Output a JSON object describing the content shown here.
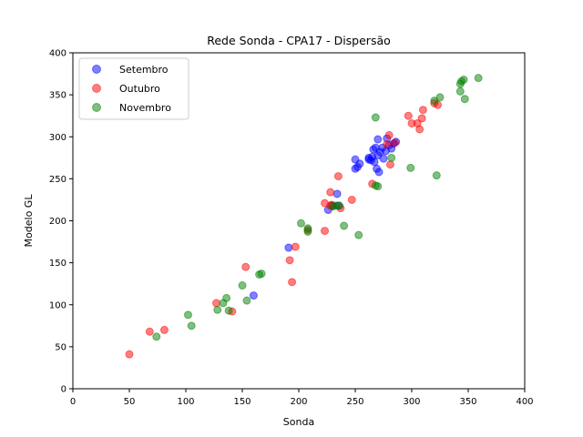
{
  "chart_data": {
    "type": "scatter",
    "title": "Rede Sonda - CPA17 - Dispersão",
    "xlabel": "Sonda",
    "ylabel": "Modelo GL",
    "xlim": [
      0,
      400
    ],
    "ylim": [
      0,
      400
    ],
    "xticks": [
      "0",
      "50",
      "100",
      "150",
      "200",
      "250",
      "300",
      "350",
      "400"
    ],
    "yticks": [
      "0",
      "50",
      "100",
      "150",
      "200",
      "250",
      "300",
      "350",
      "400"
    ],
    "grid": false,
    "legend": "top-left",
    "series": [
      {
        "name": "Setembro",
        "color": "#0000ff",
        "points": [
          [
            160,
            111
          ],
          [
            191,
            168
          ],
          [
            226,
            213
          ],
          [
            234,
            232
          ],
          [
            230,
            218
          ],
          [
            235,
            218
          ],
          [
            250,
            262
          ],
          [
            250,
            273
          ],
          [
            252,
            264
          ],
          [
            254,
            268
          ],
          [
            262,
            273
          ],
          [
            265,
            276
          ],
          [
            266,
            285
          ],
          [
            267,
            270
          ],
          [
            268,
            287
          ],
          [
            269,
            262
          ],
          [
            270,
            297
          ],
          [
            270,
            278
          ],
          [
            271,
            258
          ],
          [
            272,
            282
          ],
          [
            274,
            287
          ],
          [
            275,
            274
          ],
          [
            277,
            283
          ],
          [
            278,
            298
          ],
          [
            280,
            290
          ],
          [
            282,
            286
          ],
          [
            284,
            292
          ],
          [
            286,
            294
          ],
          [
            264,
            272
          ],
          [
            262,
            275
          ]
        ]
      },
      {
        "name": "Outubro",
        "color": "#ff0000",
        "points": [
          [
            50,
            41
          ],
          [
            68,
            68
          ],
          [
            81,
            70
          ],
          [
            127,
            102
          ],
          [
            141,
            92
          ],
          [
            153,
            145
          ],
          [
            192,
            153
          ],
          [
            194,
            127
          ],
          [
            197,
            169
          ],
          [
            208,
            189
          ],
          [
            223,
            221
          ],
          [
            223,
            188
          ],
          [
            228,
            234
          ],
          [
            228,
            218
          ],
          [
            235,
            253
          ],
          [
            237,
            215
          ],
          [
            247,
            225
          ],
          [
            265,
            244
          ],
          [
            278,
            291
          ],
          [
            280,
            302
          ],
          [
            281,
            267
          ],
          [
            285,
            293
          ],
          [
            297,
            325
          ],
          [
            300,
            316
          ],
          [
            305,
            316
          ],
          [
            307,
            309
          ],
          [
            309,
            322
          ],
          [
            310,
            332
          ],
          [
            320,
            340
          ],
          [
            323,
            338
          ],
          [
            229,
            219
          ]
        ]
      },
      {
        "name": "Novembro",
        "color": "#008000",
        "points": [
          [
            74,
            62
          ],
          [
            102,
            88
          ],
          [
            105,
            75
          ],
          [
            128,
            94
          ],
          [
            133,
            102
          ],
          [
            136,
            108
          ],
          [
            138,
            93
          ],
          [
            150,
            123
          ],
          [
            154,
            105
          ],
          [
            165,
            136
          ],
          [
            167,
            137
          ],
          [
            202,
            197
          ],
          [
            208,
            191
          ],
          [
            208,
            187
          ],
          [
            240,
            194
          ],
          [
            253,
            183
          ],
          [
            268,
            323
          ],
          [
            268,
            242
          ],
          [
            282,
            275
          ],
          [
            299,
            263
          ],
          [
            320,
            343
          ],
          [
            322,
            254
          ],
          [
            325,
            347
          ],
          [
            343,
            354
          ],
          [
            344,
            366
          ],
          [
            346,
            368
          ],
          [
            347,
            345
          ],
          [
            359,
            370
          ],
          [
            343,
            363
          ],
          [
            230,
            217
          ],
          [
            233,
            218
          ],
          [
            236,
            218
          ],
          [
            270,
            241
          ]
        ]
      }
    ]
  }
}
